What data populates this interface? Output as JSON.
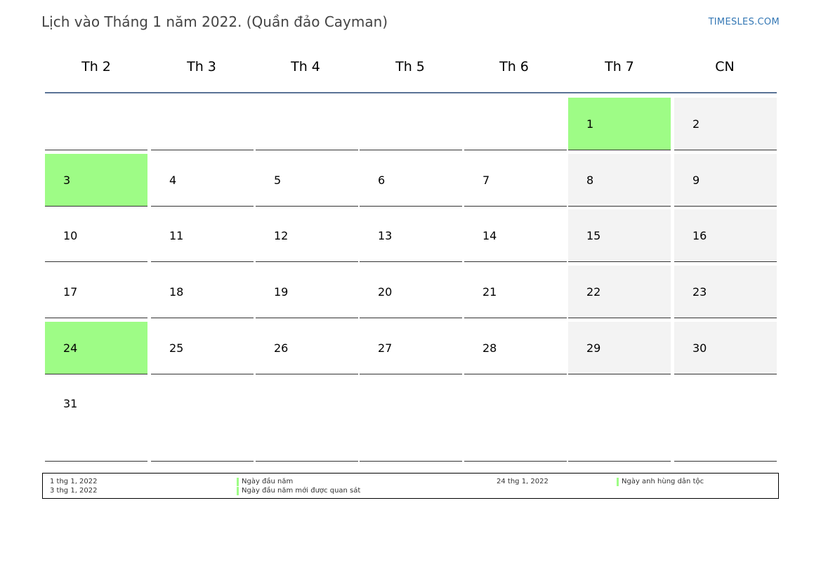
{
  "title": "Lịch vào Tháng 1 năm 2022. (Quần đảo Cayman)",
  "brand": "TIMESLES.COM",
  "colors": {
    "holiday": "#9efc86",
    "weekend": "#f3f3f3",
    "header_line": "#5a7396",
    "brand": "#3578b5"
  },
  "weekdays": [
    "Th 2",
    "Th 3",
    "Th 4",
    "Th 5",
    "Th 6",
    "Th 7",
    "CN"
  ],
  "weeks": [
    [
      "",
      "",
      "",
      "",
      "",
      "1",
      "2"
    ],
    [
      "3",
      "4",
      "5",
      "6",
      "7",
      "8",
      "9"
    ],
    [
      "10",
      "11",
      "12",
      "13",
      "14",
      "15",
      "16"
    ],
    [
      "17",
      "18",
      "19",
      "20",
      "21",
      "22",
      "23"
    ],
    [
      "24",
      "25",
      "26",
      "27",
      "28",
      "29",
      "30"
    ],
    [
      "31",
      "",
      "",
      "",
      "",
      "",
      ""
    ]
  ],
  "holiday_days": [
    "1",
    "3",
    "24"
  ],
  "legend": {
    "left": [
      {
        "date": "1 thg 1, 2022",
        "name": "Ngày đầu năm"
      },
      {
        "date": "3 thg 1, 2022",
        "name": "Ngày đầu năm mới được quan sát"
      }
    ],
    "right": [
      {
        "date": "24 thg 1, 2022",
        "name": "Ngày anh hùng dân tộc"
      }
    ]
  }
}
